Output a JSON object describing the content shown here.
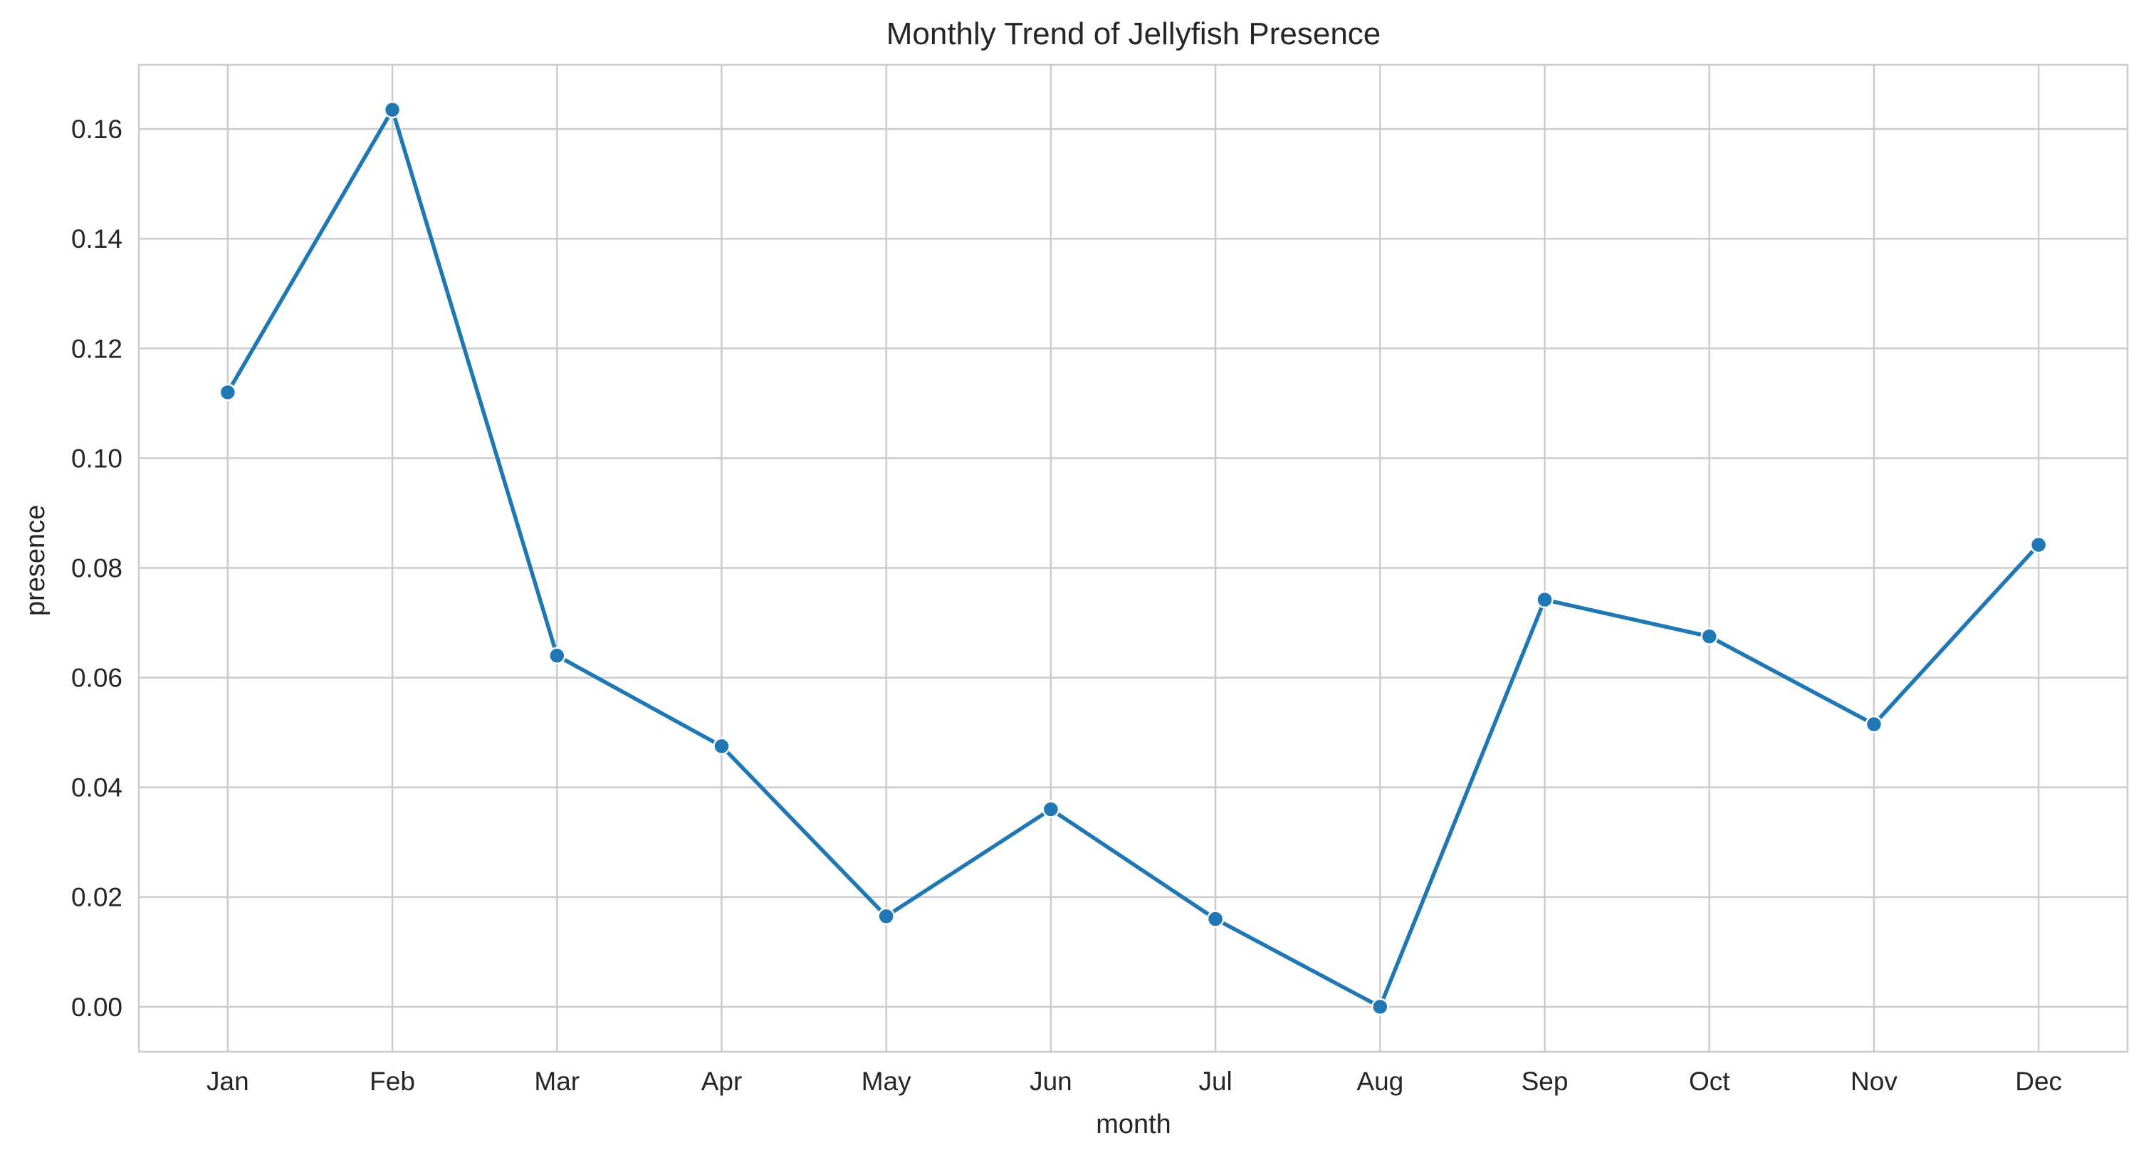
{
  "chart_data": {
    "type": "line",
    "title": "Monthly Trend of Jellyfish Presence",
    "xlabel": "month",
    "ylabel": "presence",
    "categories": [
      "Jan",
      "Feb",
      "Mar",
      "Apr",
      "May",
      "Jun",
      "Jul",
      "Aug",
      "Sep",
      "Oct",
      "Nov",
      "Dec"
    ],
    "series": [
      {
        "values": [
          0.112,
          0.1635,
          0.064,
          0.0475,
          0.0165,
          0.036,
          0.016,
          0.0,
          0.0742,
          0.0675,
          0.0515,
          0.0842
        ],
        "color": "#1f77b4",
        "marker": "circle"
      }
    ],
    "yticks": [
      0.0,
      0.02,
      0.04,
      0.06,
      0.08,
      0.1,
      0.12,
      0.14,
      0.16
    ],
    "ytick_labels": [
      "0.00",
      "0.02",
      "0.04",
      "0.06",
      "0.08",
      "0.10",
      "0.12",
      "0.14",
      "0.16"
    ],
    "ylim": [
      -0.0082,
      0.1717
    ],
    "grid": true,
    "legend": "none"
  }
}
